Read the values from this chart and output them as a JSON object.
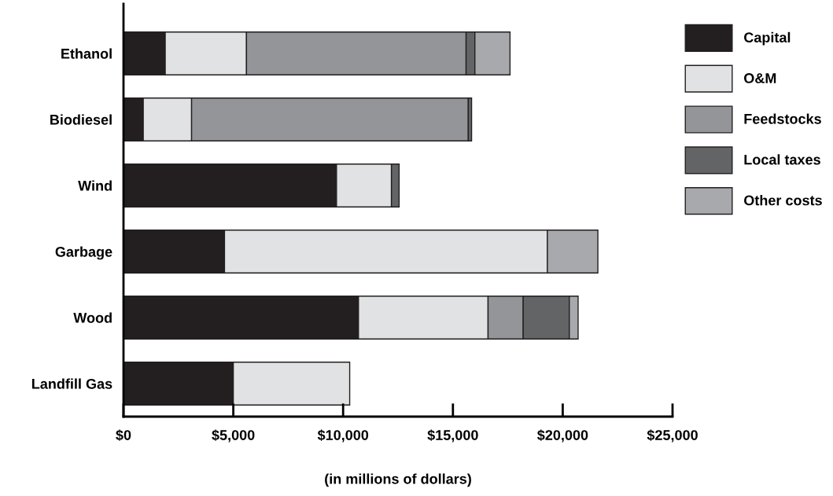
{
  "chart_data": {
    "type": "bar",
    "orientation": "horizontal",
    "stacked": true,
    "categories": [
      "Ethanol",
      "Biodiesel",
      "Wind",
      "Garbage",
      "Wood",
      "Landfill Gas"
    ],
    "series": [
      {
        "name": "Capital",
        "color": "#231f20",
        "values": [
          1900,
          900,
          9700,
          4600,
          10700,
          5000
        ]
      },
      {
        "name": "O&M",
        "color": "#e1e2e4",
        "values": [
          3700,
          2200,
          2500,
          14700,
          5900,
          5300
        ]
      },
      {
        "name": "Feedstocks",
        "color": "#939598",
        "values": [
          10000,
          12600,
          null,
          null,
          1600,
          null
        ]
      },
      {
        "name": "Local taxes",
        "color": "#636466",
        "values": [
          400,
          150,
          350,
          null,
          2100,
          null
        ]
      },
      {
        "name": "Other costs",
        "color": "#a7a9ac",
        "values": [
          1600,
          null,
          null,
          2300,
          400,
          null
        ]
      }
    ],
    "xlim": [
      0,
      25000
    ],
    "xticks": [
      {
        "value": 0,
        "label": "$0"
      },
      {
        "value": 5000,
        "label": "$5,000"
      },
      {
        "value": 10000,
        "label": "$10,000"
      },
      {
        "value": 15000,
        "label": "$15,000"
      },
      {
        "value": 20000,
        "label": "$20,000"
      },
      {
        "value": 25000,
        "label": "$25,000"
      }
    ],
    "xlabel": "(in millions of dollars)",
    "legend": "right",
    "grid": false
  }
}
